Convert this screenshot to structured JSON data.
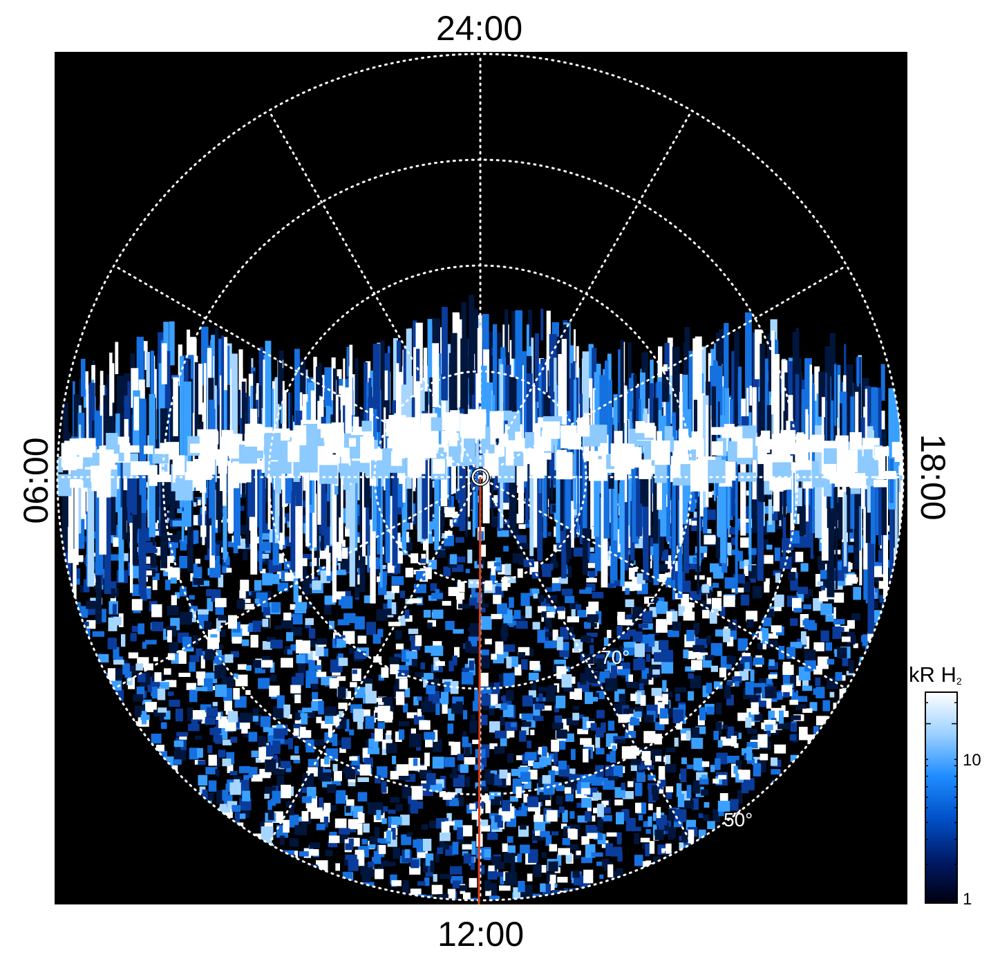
{
  "image": {
    "kind": "polar auroral emission map (H2 brightness)",
    "background_color": "#000000",
    "local_time_labels": {
      "top": "24:00",
      "bottom": "12:00",
      "left": "06:00",
      "right": "18:00"
    },
    "latitude_labels": [
      "70°",
      "50°"
    ],
    "grid": {
      "style": "dotted",
      "color": "#ffffff",
      "meridian_spokes": 12,
      "latitude_circles": 4
    },
    "marker": {
      "type": "pole-ring",
      "color": "#ffffff"
    },
    "central_line_color": "#d9421a",
    "colorbar": {
      "title": "kR H",
      "title_subscript": "2",
      "tick_labels": [
        "10",
        "1"
      ],
      "colors": [
        "#000010",
        "#001a66",
        "#0050c8",
        "#1e8cff",
        "#9ad0ff",
        "#ffffff"
      ]
    }
  }
}
